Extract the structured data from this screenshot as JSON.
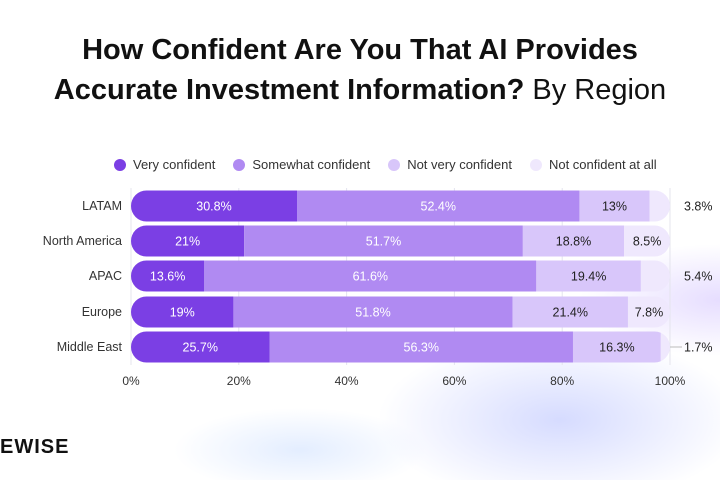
{
  "title_bold_line1": "How Confident Are You That AI Provides",
  "title_bold_line2": "Accurate Investment Information?",
  "title_light": "By Region",
  "logo_text": "EWISE",
  "chart_data": {
    "type": "bar",
    "orientation": "horizontal",
    "stacked": true,
    "categories": [
      "LATAM",
      "North America",
      "APAC",
      "Europe",
      "Middle East"
    ],
    "series": [
      {
        "name": "Very confident",
        "color": "#7b3fe4",
        "values": [
          30.8,
          21,
          13.6,
          19,
          25.7
        ],
        "labels": [
          "30.8%",
          "21%",
          "13.6%",
          "19%",
          "25.7%"
        ]
      },
      {
        "name": "Somewhat confident",
        "color": "#b08af2",
        "values": [
          52.4,
          51.7,
          61.6,
          51.8,
          56.3
        ],
        "labels": [
          "52.4%",
          "51.7%",
          "61.6%",
          "51.8%",
          "56.3%"
        ]
      },
      {
        "name": "Not very confident",
        "color": "#d8c6fa",
        "values": [
          13,
          18.8,
          19.4,
          21.4,
          16.3
        ],
        "labels": [
          "13%",
          "18.8%",
          "19.4%",
          "21.4%",
          "16.3%"
        ]
      },
      {
        "name": "Not confident at all",
        "color": "#efe8fd",
        "values": [
          3.8,
          8.5,
          5.4,
          7.8,
          1.7
        ],
        "labels": [
          "3.8%",
          "8.5%",
          "5.4%",
          "7.8%",
          "1.7%"
        ]
      }
    ],
    "xlim": [
      0,
      100
    ],
    "xticks": [
      "0%",
      "20%",
      "40%",
      "60%",
      "80%",
      "100%"
    ],
    "grid": true,
    "legend": "top"
  }
}
